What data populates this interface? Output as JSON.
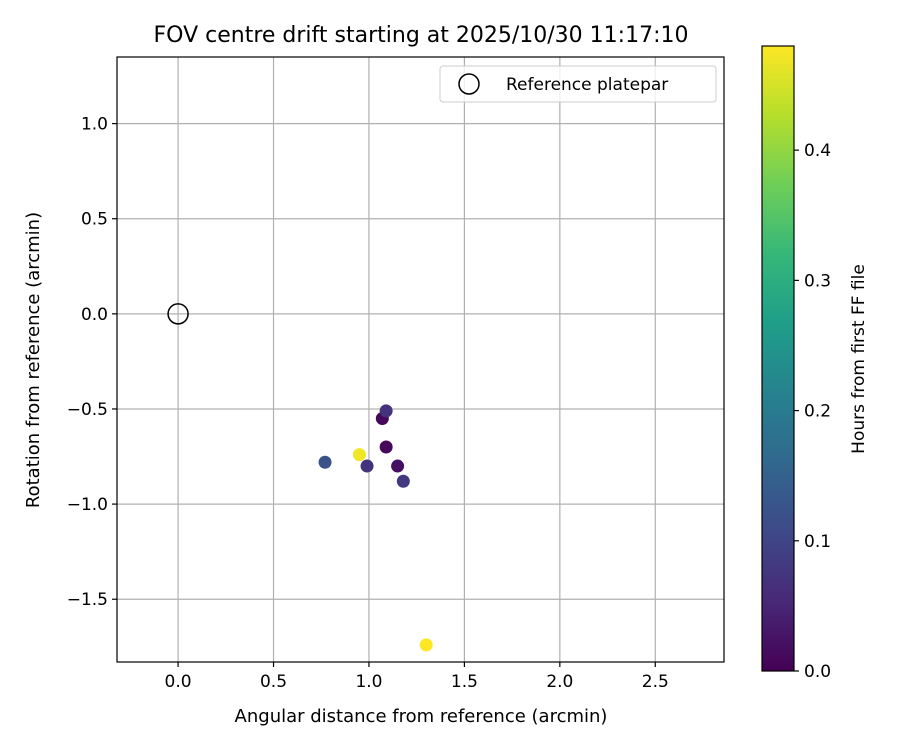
{
  "chart_data": {
    "type": "scatter",
    "title": "FOV centre drift starting at 2025/10/30 11:17:10",
    "xlabel": "Angular distance from reference (arcmin)",
    "ylabel": "Rotation from reference (arcmin)",
    "xlim": [
      -0.32,
      2.86
    ],
    "ylim": [
      -1.83,
      1.35
    ],
    "xticks": [
      0.0,
      0.5,
      1.0,
      1.5,
      2.0,
      2.5
    ],
    "xtick_labels": [
      "0.0",
      "0.5",
      "1.0",
      "1.5",
      "2.0",
      "2.5"
    ],
    "yticks": [
      1.0,
      0.5,
      0.0,
      -0.5,
      -1.0,
      -1.5
    ],
    "ytick_labels": [
      "1.0",
      "0.5",
      "0.0",
      "−0.5",
      "−1.0",
      "−1.5"
    ],
    "grid": true,
    "legend": {
      "location": "top-right",
      "label": "Reference platepar"
    },
    "reference_point": {
      "x": 0.0,
      "y": 0.0
    },
    "points": [
      {
        "x": 1.07,
        "y": -0.55,
        "hours": 0.01
      },
      {
        "x": 1.09,
        "y": -0.7,
        "hours": 0.01
      },
      {
        "x": 1.15,
        "y": -0.8,
        "hours": 0.02
      },
      {
        "x": 1.09,
        "y": -0.51,
        "hours": 0.07
      },
      {
        "x": 0.99,
        "y": -0.8,
        "hours": 0.07
      },
      {
        "x": 1.18,
        "y": -0.88,
        "hours": 0.08
      },
      {
        "x": 0.77,
        "y": -0.78,
        "hours": 0.12
      },
      {
        "x": 0.95,
        "y": -0.74,
        "hours": 0.47
      },
      {
        "x": 1.3,
        "y": -1.74,
        "hours": 0.48
      }
    ],
    "colorbar": {
      "label": "Hours from first FF file",
      "colormap": "viridis",
      "range": [
        0.0,
        0.48
      ],
      "ticks": [
        0.0,
        0.1,
        0.2,
        0.3,
        0.4
      ],
      "tick_labels": [
        "0.0",
        "0.1",
        "0.2",
        "0.3",
        "0.4"
      ]
    }
  },
  "colors": {
    "grid": "#b0b0b0",
    "axes": "#000000",
    "viridis": [
      "#440154",
      "#482878",
      "#3e4989",
      "#31688e",
      "#26828e",
      "#1f9e89",
      "#35b779",
      "#6ece58",
      "#b5de2b",
      "#fde725"
    ]
  }
}
